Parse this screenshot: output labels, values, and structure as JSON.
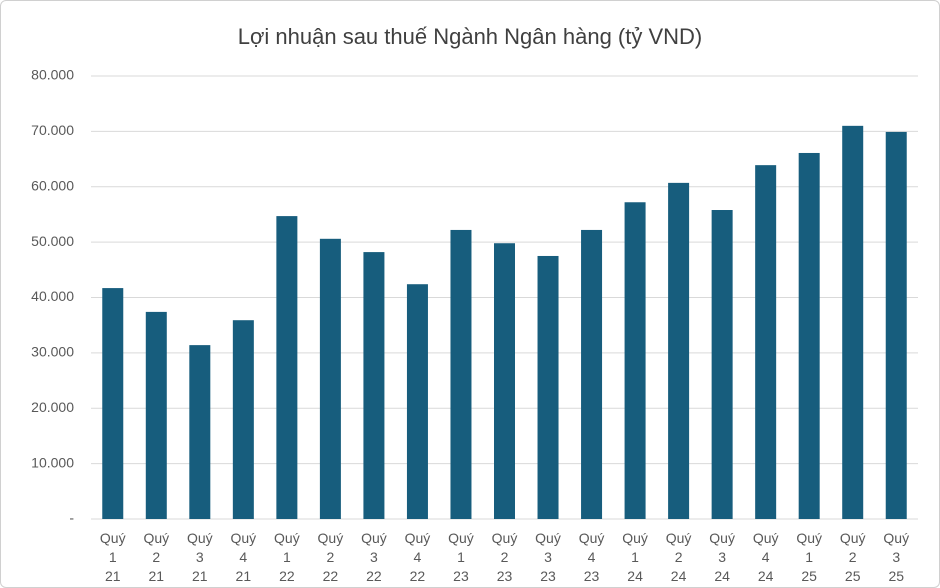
{
  "chart_data": {
    "type": "bar",
    "title": "Lợi nhuận sau thuế Ngành Ngân hàng (tỷ VND)",
    "categories": [
      "Quý 1 21",
      "Quý 2 21",
      "Quý 3 21",
      "Quý 4 21",
      "Quý 1 22",
      "Quý 2 22",
      "Quý 3 22",
      "Quý 4 22",
      "Quý 1 23",
      "Quý 2 23",
      "Quý 3 23",
      "Quý 4 23",
      "Quý 1 24",
      "Quý 2 24",
      "Quý 3 24",
      "Quý 4 24",
      "Quý 1 25",
      "Quý 2 25",
      "Quý 3 25"
    ],
    "values": [
      41700,
      37400,
      31400,
      35900,
      54700,
      50600,
      48200,
      42400,
      52200,
      49800,
      47500,
      52200,
      57200,
      60700,
      55800,
      63900,
      66100,
      71000,
      69900
    ],
    "color": "#175d7d",
    "ylim": [
      0,
      80000
    ],
    "yticks": [
      {
        "value": 0,
        "label": "-"
      },
      {
        "value": 10000,
        "label": "10.000"
      },
      {
        "value": 20000,
        "label": "20.000"
      },
      {
        "value": 30000,
        "label": "30.000"
      },
      {
        "value": 40000,
        "label": "40.000"
      },
      {
        "value": 50000,
        "label": "50.000"
      },
      {
        "value": 60000,
        "label": "60.000"
      },
      {
        "value": 70000,
        "label": "70.000"
      },
      {
        "value": 80000,
        "label": "80.000"
      }
    ],
    "grid": true
  }
}
